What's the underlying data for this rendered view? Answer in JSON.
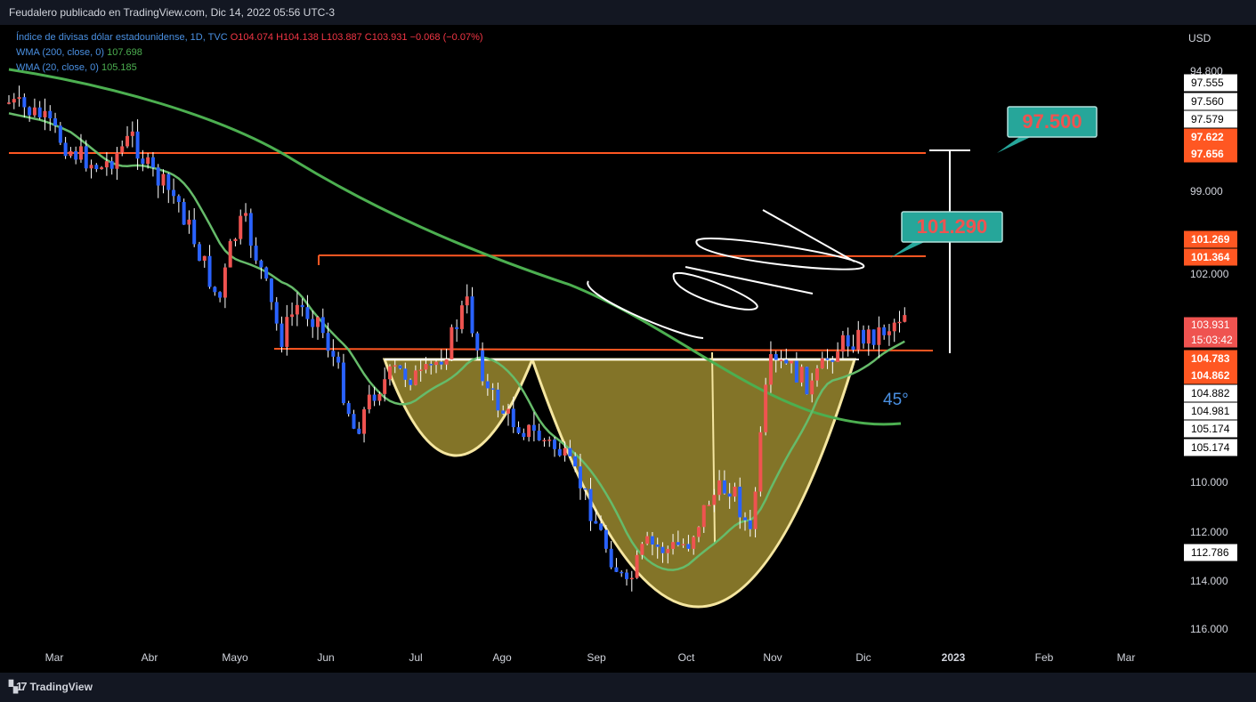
{
  "header": {
    "publisher": "Feudalero publicado en TradingView.com, Dic 14, 2022 05:56 UTC-3"
  },
  "legend": {
    "symbol": "Índice de divisas dólar estadounidense, 1D, TVC",
    "ohlc": "O104.074 H104.138 L103.887 C103.931",
    "change": "−0.068 (−0.07%)",
    "wma200": "WMA (200, close, 0)",
    "wma200_value": "107.698",
    "wma20": "WMA (20, close, 0)",
    "wma20_value": "105.185"
  },
  "brand": {
    "name": "TradingView",
    "logo_icon": "tradingview-logo-icon"
  },
  "colors": {
    "up": "#ef5350",
    "down": "#2962ff",
    "wma200": "#4caf50",
    "wma20": "#66bb6a",
    "levels": "#ff5722",
    "cup_fill": "#8a7a2a"
  },
  "chart_data": {
    "type": "candlestick",
    "currency": "USD",
    "y_axis": {
      "inverted": true,
      "ylim": [
        93.0,
        117.0
      ],
      "ticks": [
        "94.800",
        "99.000",
        "102.000",
        "110.000",
        "112.000",
        "114.000",
        "116.000"
      ]
    },
    "x_axis": {
      "ticks": [
        "Mar",
        "Abr",
        "Mayo",
        "Jun",
        "Jul",
        "Ago",
        "Sep",
        "Oct",
        "Nov",
        "Dic",
        "2023",
        "Feb",
        "Mar"
      ]
    },
    "price_labels": [
      {
        "value": "97.555",
        "style": "white"
      },
      {
        "value": "97.560",
        "style": "white"
      },
      {
        "value": "97.579",
        "style": "white"
      },
      {
        "value": "97.622",
        "style": "orange"
      },
      {
        "value": "97.656",
        "style": "orange"
      },
      {
        "value": "101.269",
        "style": "orange"
      },
      {
        "value": "101.364",
        "style": "orange"
      },
      {
        "value": "103.931",
        "style": "red"
      },
      {
        "value": "15:03:42",
        "style": "red"
      },
      {
        "value": "104.783",
        "style": "orange"
      },
      {
        "value": "104.862",
        "style": "orange"
      },
      {
        "value": "104.882",
        "style": "white"
      },
      {
        "value": "104.981",
        "style": "white"
      },
      {
        "value": "105.174",
        "style": "white"
      },
      {
        "value": "105.174",
        "style": "white"
      },
      {
        "value": "112.786",
        "style": "white"
      }
    ],
    "levels": [
      97.62,
      101.3,
      104.8
    ],
    "targets": [
      {
        "label": "97.500",
        "value": 97.5
      },
      {
        "label": "101.290",
        "value": 101.29
      }
    ],
    "annotations": {
      "angle": "45°"
    },
    "close_path": [
      [
        0,
        96.0
      ],
      [
        1,
        96.5
      ],
      [
        2,
        97.8
      ],
      [
        3,
        98.5
      ],
      [
        4,
        97.3
      ],
      [
        4.5,
        98.5
      ],
      [
        5.5,
        99.8
      ],
      [
        6.2,
        101.8
      ],
      [
        6.8,
        103.6
      ],
      [
        7.2,
        101.4
      ],
      [
        7.6,
        100.4
      ],
      [
        8.2,
        102.5
      ],
      [
        8.8,
        105.0
      ],
      [
        9.3,
        103.7
      ],
      [
        10,
        104.2
      ],
      [
        10.6,
        106.0
      ],
      [
        11.2,
        108.5
      ],
      [
        11.8,
        107.0
      ],
      [
        12.5,
        106.2
      ],
      [
        13.4,
        106.5
      ],
      [
        14.2,
        105.3
      ],
      [
        14.8,
        103.5
      ],
      [
        15.5,
        107.0
      ],
      [
        16.2,
        108.0
      ],
      [
        17,
        108.6
      ],
      [
        17.8,
        109.2
      ],
      [
        18.5,
        110.5
      ],
      [
        19.2,
        112.5
      ],
      [
        20,
        114.5
      ],
      [
        20.6,
        112.8
      ],
      [
        21.3,
        113.0
      ],
      [
        22,
        112.7
      ],
      [
        22.7,
        111.0
      ],
      [
        23.4,
        110.5
      ],
      [
        24,
        112.5
      ],
      [
        24.6,
        106.0
      ],
      [
        25.2,
        106.0
      ],
      [
        26,
        106.8
      ],
      [
        26.6,
        105.5
      ],
      [
        27.2,
        105.0
      ],
      [
        28.0,
        104.8
      ],
      [
        28.5,
        104.5
      ],
      [
        29.0,
        103.9
      ]
    ]
  }
}
